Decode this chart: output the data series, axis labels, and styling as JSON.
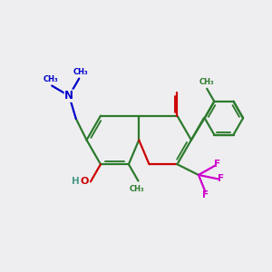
{
  "bg_color": "#eeeef0",
  "bond_color": "#2d7a2d",
  "oxygen_color": "#cc0000",
  "nitrogen_color": "#0000cc",
  "fluorine_color": "#cc00cc",
  "hydroxyl_color": "#4a9a8a",
  "lw": 1.6,
  "xlim": [
    0,
    10
  ],
  "ylim": [
    0,
    10
  ],
  "BL": 1.0
}
